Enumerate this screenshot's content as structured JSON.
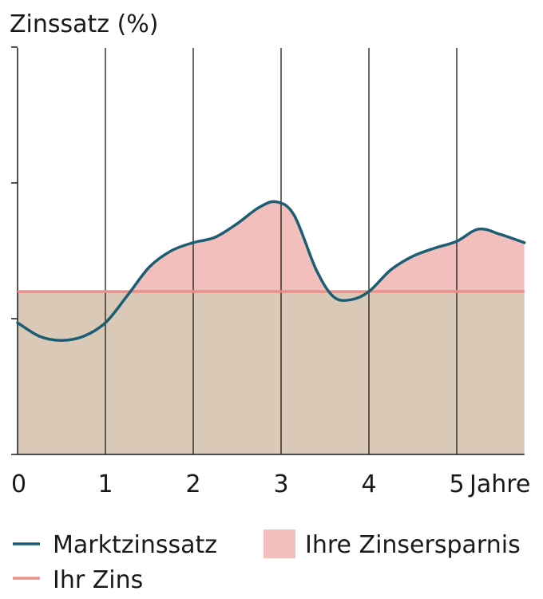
{
  "chart_data": {
    "type": "area",
    "title": "Zinssatz (%)",
    "xlabel": "",
    "ylabel": "",
    "x_tick_labels": [
      "0",
      "1",
      "2",
      "3",
      "4",
      "5"
    ],
    "x_unit_label": "Jahre",
    "xlim": [
      0,
      5.77
    ],
    "ylim": [
      0,
      3
    ],
    "y_ticks": [
      0,
      1,
      2,
      3
    ],
    "grid": "vertical",
    "series": [
      {
        "name": "Marktzinssatz",
        "kind": "line",
        "color": "#1b5e73",
        "x": [
          0,
          0.25,
          0.5,
          0.75,
          1,
          1.25,
          1.5,
          1.75,
          2,
          2.25,
          2.5,
          2.75,
          2.95,
          3.15,
          3.4,
          3.6,
          3.8,
          4.0,
          4.25,
          4.5,
          4.75,
          5,
          5.25,
          5.5,
          5.77
        ],
        "values": [
          0.97,
          0.87,
          0.84,
          0.87,
          0.97,
          1.17,
          1.38,
          1.5,
          1.56,
          1.6,
          1.7,
          1.82,
          1.86,
          1.76,
          1.36,
          1.16,
          1.14,
          1.2,
          1.36,
          1.46,
          1.52,
          1.57,
          1.66,
          1.62,
          1.56
        ]
      },
      {
        "name": "Ihr Zins",
        "kind": "line",
        "color": "#e8908b",
        "x": [
          0,
          5.77
        ],
        "values": [
          1.2,
          1.2
        ]
      }
    ],
    "fill_regions": [
      {
        "name": "Ihre Zinsersparnis",
        "color": "#f2bfbd",
        "description": "between Marktzinssatz and Ihr Zins where Marktzinssatz is higher"
      },
      {
        "name": "base",
        "color": "#d9c9b6"
      }
    ],
    "legend": {
      "placement": "bottom",
      "items": [
        {
          "label": "Marktzinssatz",
          "kind": "line",
          "color": "#1b5e73"
        },
        {
          "label": "Ihre Zinsersparnis",
          "kind": "patch",
          "color": "#f2bfbd"
        },
        {
          "label": "Ihr Zins",
          "kind": "line",
          "color": "#e8908b"
        }
      ]
    }
  }
}
